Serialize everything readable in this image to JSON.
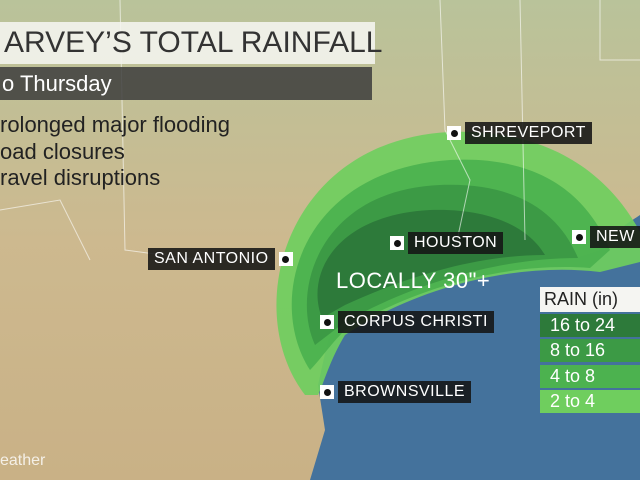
{
  "header": {
    "title": "ARVEY’S TOTAL RAINFALL",
    "subtitle": "o Thursday"
  },
  "bullets": [
    "rolonged major flooding",
    "oad closures",
    "ravel disruptions"
  ],
  "cities": [
    "SHREVEPORT",
    "HOUSTON",
    "SAN ANTONIO",
    "CORPUS CHRISTI",
    "BROWNSVILLE",
    "NEW"
  ],
  "annotation": "LOCALLY 30\"+",
  "legend": {
    "title": "RAIN (in)",
    "items": [
      "16 to 24",
      "8 to 16",
      "4 to 8",
      "2 to 4"
    ]
  },
  "watermark": "eather"
}
